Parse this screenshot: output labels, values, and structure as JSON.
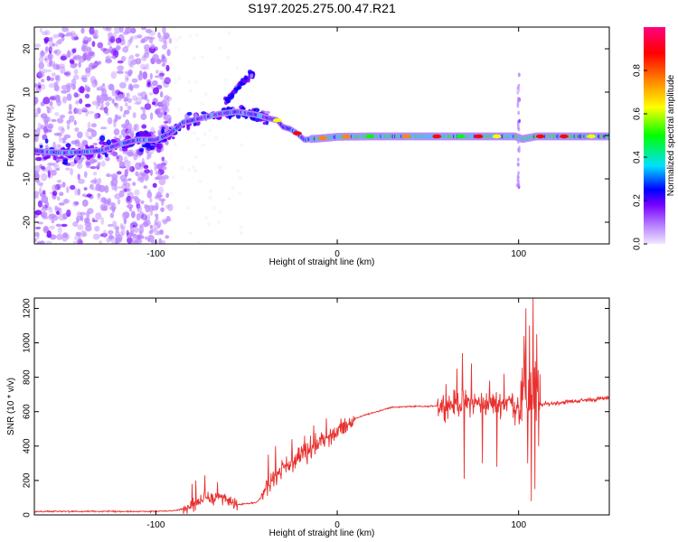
{
  "title": "S197.2025.275.00.47.R21",
  "chart_data": [
    {
      "type": "heatmap",
      "name": "spectrogram",
      "xlabel": "Height of straight line (km)",
      "ylabel": "Frequency (Hz)",
      "xlim": [
        -167,
        150
      ],
      "ylim": [
        -25,
        25
      ],
      "xticks": [
        -100,
        0,
        100
      ],
      "yticks": [
        -20,
        -10,
        0,
        10,
        20
      ],
      "ridge": [
        [
          -167,
          -3.5
        ],
        [
          -160,
          -3.8
        ],
        [
          -150,
          -4
        ],
        [
          -140,
          -3.8
        ],
        [
          -130,
          -3.5
        ],
        [
          -120,
          -2
        ],
        [
          -110,
          -1
        ],
        [
          -100,
          -1
        ],
        [
          -92,
          0.5
        ],
        [
          -85,
          3
        ],
        [
          -75,
          4
        ],
        [
          -65,
          5
        ],
        [
          -55,
          5.5
        ],
        [
          -45,
          4.8
        ],
        [
          -38,
          4
        ],
        [
          -33,
          3.5
        ],
        [
          -30,
          2
        ],
        [
          -26,
          1.5
        ],
        [
          -22,
          0.5
        ],
        [
          -18,
          -1
        ],
        [
          -14,
          -0.8
        ],
        [
          -5,
          -0.5
        ],
        [
          0,
          -0.3
        ],
        [
          20,
          -0.2
        ],
        [
          60,
          -0.2
        ],
        [
          98,
          -0.2
        ],
        [
          102,
          -0.8
        ],
        [
          110,
          -0.2
        ],
        [
          150,
          -0.2
        ]
      ],
      "upper_branch": [
        [
          -60,
          8
        ],
        [
          -55,
          11
        ],
        [
          -50,
          13
        ],
        [
          -47,
          14
        ]
      ],
      "colorbar": {
        "label": "Normalized spectral amplitude",
        "ticks": [
          "0.0",
          "0.2",
          "0.4",
          "0.6",
          "0.8"
        ],
        "range": [
          0,
          1
        ],
        "stops": [
          "#f0e6ff",
          "#bb88ff",
          "#7700ff",
          "#0000ff",
          "#00e0ff",
          "#00ff00",
          "#ffff00",
          "#ff8800",
          "#ff0000",
          "#ff0080"
        ]
      }
    },
    {
      "type": "line",
      "name": "snr",
      "xlabel": "Height of straight line (km)",
      "ylabel": "SNR (10 * v/v)",
      "xlim": [
        -167,
        150
      ],
      "ylim": [
        0,
        1260
      ],
      "xticks": [
        -100,
        0,
        100
      ],
      "yticks": [
        0,
        200,
        400,
        600,
        800,
        1000,
        1200
      ],
      "color": "#e8312f",
      "envelope": [
        [
          -167,
          20
        ],
        [
          -120,
          20
        ],
        [
          -100,
          20
        ],
        [
          -90,
          25
        ],
        [
          -82,
          40
        ],
        [
          -75,
          90
        ],
        [
          -68,
          100
        ],
        [
          -60,
          80
        ],
        [
          -55,
          60
        ],
        [
          -45,
          70
        ],
        [
          -40,
          120
        ],
        [
          -35,
          220
        ],
        [
          -30,
          280
        ],
        [
          -25,
          300
        ],
        [
          -20,
          350
        ],
        [
          -15,
          380
        ],
        [
          -10,
          420
        ],
        [
          -5,
          440
        ],
        [
          0,
          480
        ],
        [
          5,
          520
        ],
        [
          10,
          560
        ],
        [
          15,
          580
        ],
        [
          20,
          595
        ],
        [
          25,
          610
        ],
        [
          30,
          625
        ],
        [
          40,
          630
        ],
        [
          50,
          630
        ],
        [
          60,
          640
        ],
        [
          70,
          650
        ],
        [
          80,
          650
        ],
        [
          90,
          650
        ],
        [
          95,
          660
        ],
        [
          100,
          640
        ],
        [
          104,
          700
        ],
        [
          108,
          720
        ],
        [
          112,
          640
        ],
        [
          120,
          650
        ],
        [
          130,
          660
        ],
        [
          140,
          670
        ],
        [
          150,
          680
        ]
      ],
      "spikes": [
        [
          -80,
          180
        ],
        [
          -78,
          200
        ],
        [
          -73,
          230
        ],
        [
          -66,
          190
        ],
        [
          -38,
          350
        ],
        [
          -34,
          400
        ],
        [
          -25,
          440
        ],
        [
          -18,
          460
        ],
        [
          -13,
          520
        ],
        [
          -6,
          560
        ],
        [
          2,
          560
        ],
        [
          60,
          760
        ],
        [
          66,
          850
        ],
        [
          69,
          940
        ],
        [
          70,
          210
        ],
        [
          74,
          880
        ],
        [
          80,
          300
        ],
        [
          84,
          780
        ],
        [
          88,
          280
        ],
        [
          92,
          820
        ],
        [
          98,
          520
        ],
        [
          103,
          1040
        ],
        [
          104,
          1200
        ],
        [
          105,
          300
        ],
        [
          106,
          1100
        ],
        [
          107,
          80
        ],
        [
          108,
          1260
        ],
        [
          109,
          150
        ],
        [
          110,
          1050
        ],
        [
          111,
          400
        ]
      ]
    }
  ]
}
